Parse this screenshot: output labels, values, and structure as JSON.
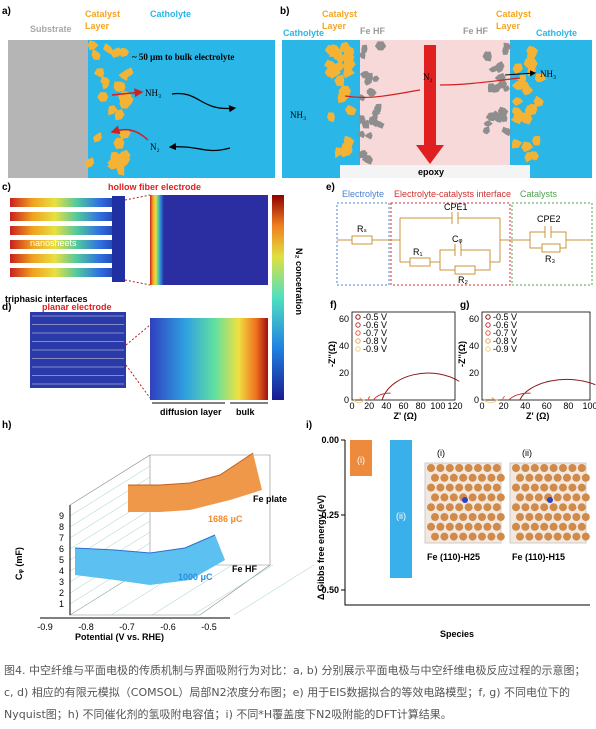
{
  "a": {
    "label": "a)",
    "substrate": "Substrate",
    "catalyst": [
      "Catalyst",
      "Layer"
    ],
    "catholyte": "Catholyte",
    "distance": "~ 50 μm to bulk electrolyte",
    "nh3": "NH₃",
    "n2": "N₂"
  },
  "b": {
    "label": "b)",
    "catholyte_left": "Catholyte",
    "catalyst_left": [
      "Catalyst",
      "Layer"
    ],
    "fehf_left": "Fe HF",
    "fehf_right": "Fe HF",
    "catalyst_right": [
      "Catalyst",
      "Layer"
    ],
    "catholyte_right": "Catholyte",
    "n2": "N₂",
    "nh3_left": "NH₃",
    "nh3_right": "NH₃",
    "epoxy": "epoxy"
  },
  "c": {
    "label": "c)",
    "title": "hollow fiber electrode",
    "nanosheets": "nanosheets",
    "triphasic": "triphasic interfaces",
    "colorbar": "N₂ concetration"
  },
  "d": {
    "label": "d)",
    "title": "planar electrode",
    "diffusion": "diffusion layer",
    "bulk": "bulk"
  },
  "e": {
    "label": "e)",
    "electrolyte": "Electrolyte",
    "interface": "Electrolyte-catalysts interface",
    "catalysts": "Catalysts",
    "cpe1": "CPE1",
    "rs": "Rₛ",
    "r1": "R₁",
    "cphi": "Cᵩ",
    "r2": "R₂",
    "cpe2": "CPE2",
    "r3": "R₃"
  },
  "f": {
    "label": "f)",
    "legend": [
      "-0.5 V",
      "-0.6 V",
      "-0.7 V",
      "-0.8 V",
      "-0.9 V"
    ],
    "ylabel": "-Z''(Ω)",
    "xlabel": "Z' (Ω)",
    "xticks": [
      "0",
      "20",
      "40",
      "60",
      "80",
      "100",
      "120"
    ],
    "yticks": [
      "0",
      "20",
      "40",
      "60"
    ]
  },
  "g": {
    "label": "g)",
    "legend": [
      "-0.5 V",
      "-0.6 V",
      "-0.7 V",
      "-0.8 V",
      "-0.9 V"
    ],
    "ylabel": "-Z''(Ω)",
    "xlabel": "Z' (Ω)",
    "xticks": [
      "0",
      "20",
      "40",
      "60",
      "80",
      "100"
    ],
    "yticks": [
      "0",
      "20",
      "40",
      "60"
    ]
  },
  "h": {
    "label": "h)",
    "fe_plate": "Fe plate",
    "fe_hf": "Fe HF",
    "q_plate": "1686 μC",
    "q_hf": "1000 μC",
    "ylabel": "Cᵩ (mF)",
    "yticks": [
      "1",
      "2",
      "3",
      "4",
      "5",
      "6",
      "7",
      "8",
      "9"
    ],
    "xticks": [
      "-0.9",
      "-0.8",
      "-0.7",
      "-0.6",
      "-0.5"
    ],
    "xlabel": "Potential (V vs. RHE)"
  },
  "i": {
    "label": "i)",
    "ylabel": "Δ Gibbs free energy (eV)",
    "xlabel": "Species",
    "ylim": [
      -0.55,
      0
    ],
    "yticks": [
      {
        "value": 0,
        "label": "0.00"
      },
      {
        "value": -0.25,
        "label": "-0.25"
      },
      {
        "value": -0.5,
        "label": "-0.50"
      }
    ],
    "bars": [
      {
        "label": "(i)",
        "value": -0.12,
        "color": "#ee8a3c"
      },
      {
        "label": "(ii)",
        "value": -0.46,
        "color": "#3ab0ea"
      }
    ],
    "structures": [
      {
        "tag": "(i)",
        "name": "Fe (110)-H25"
      },
      {
        "tag": "(ii)",
        "name": "Fe (110)-H15"
      }
    ]
  },
  "caption": "图4. 中空纤维与平面电极的传质机制与界面吸附行为对比：a, b) 分别展示平面电极与中空纤维电极反应过程的示意图；c, d) 相应的有限元模拟（COMSOL）局部N2浓度分布图；e) 用于EIS数据拟合的等效电路模型；f, g) 不同电位下的Nyquist图；h) 不同催化剂的氢吸附电容值；i) 不同*H覆盖度下N2吸附能的DFT计算结果。"
}
